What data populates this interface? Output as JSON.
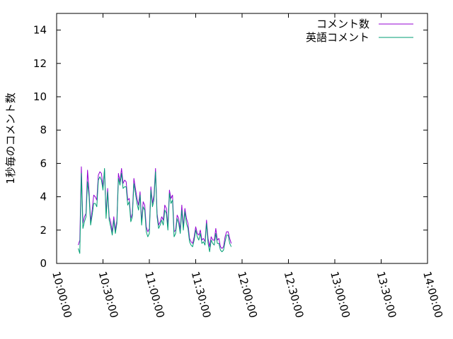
{
  "chart_data": {
    "type": "line",
    "title": "",
    "xlabel": "",
    "ylabel": "1秒毎のコメント数",
    "xlim": [
      "10:00:00",
      "14:00:00"
    ],
    "ylim": [
      0,
      15
    ],
    "grid": false,
    "legend_position": "top-right",
    "x_ticks": [
      "10:00:00",
      "10:30:00",
      "11:00:00",
      "11:30:00",
      "12:00:00",
      "12:30:00",
      "13:00:00",
      "13:30:00",
      "14:00:00"
    ],
    "y_ticks": [
      0,
      2,
      4,
      6,
      8,
      10,
      12,
      14
    ],
    "series": [
      {
        "name": "コメント数",
        "color": "#9400d3",
        "points": [
          [
            "10:14:00",
            1.1
          ],
          [
            "10:15:00",
            1.4
          ],
          [
            "10:16:00",
            5.8
          ],
          [
            "10:17:00",
            2.4
          ],
          [
            "10:18:00",
            2.8
          ],
          [
            "10:19:00",
            3.0
          ],
          [
            "10:20:00",
            5.6
          ],
          [
            "10:21:00",
            4.3
          ],
          [
            "10:22:00",
            2.5
          ],
          [
            "10:23:00",
            3.2
          ],
          [
            "10:24:00",
            4.1
          ],
          [
            "10:25:00",
            4.0
          ],
          [
            "10:26:00",
            3.8
          ],
          [
            "10:27:00",
            5.3
          ],
          [
            "10:28:00",
            5.5
          ],
          [
            "10:29:00",
            5.4
          ],
          [
            "10:30:00",
            4.6
          ],
          [
            "10:31:00",
            5.6
          ],
          [
            "10:32:00",
            3.0
          ],
          [
            "10:33:00",
            4.5
          ],
          [
            "10:34:00",
            2.8
          ],
          [
            "10:35:00",
            2.5
          ],
          [
            "10:36:00",
            1.9
          ],
          [
            "10:37:00",
            2.8
          ],
          [
            "10:38:00",
            2.0
          ],
          [
            "10:39:00",
            2.6
          ],
          [
            "10:40:00",
            5.4
          ],
          [
            "10:41:00",
            4.9
          ],
          [
            "10:42:00",
            5.7
          ],
          [
            "10:43:00",
            4.8
          ],
          [
            "10:44:00",
            5.0
          ],
          [
            "10:45:00",
            4.9
          ],
          [
            "10:46:00",
            3.8
          ],
          [
            "10:47:00",
            3.9
          ],
          [
            "10:48:00",
            2.7
          ],
          [
            "10:49:00",
            3.0
          ],
          [
            "10:50:00",
            5.1
          ],
          [
            "10:51:00",
            4.5
          ],
          [
            "10:52:00",
            3.9
          ],
          [
            "10:53:00",
            3.5
          ],
          [
            "10:54:00",
            4.3
          ],
          [
            "10:55:00",
            2.5
          ],
          [
            "10:56:00",
            3.7
          ],
          [
            "10:57:00",
            3.5
          ],
          [
            "10:58:00",
            2.2
          ],
          [
            "10:59:00",
            1.9
          ],
          [
            "11:00:00",
            2.1
          ],
          [
            "11:01:00",
            4.6
          ],
          [
            "11:02:00",
            3.6
          ],
          [
            "11:03:00",
            4.1
          ],
          [
            "11:04:00",
            5.7
          ],
          [
            "11:05:00",
            3.0
          ],
          [
            "11:06:00",
            2.3
          ],
          [
            "11:07:00",
            2.5
          ],
          [
            "11:08:00",
            2.8
          ],
          [
            "11:09:00",
            2.6
          ],
          [
            "11:10:00",
            3.5
          ],
          [
            "11:11:00",
            3.3
          ],
          [
            "11:12:00",
            2.2
          ],
          [
            "11:13:00",
            4.4
          ],
          [
            "11:14:00",
            3.9
          ],
          [
            "11:15:00",
            4.1
          ],
          [
            "11:16:00",
            1.9
          ],
          [
            "11:17:00",
            2.0
          ],
          [
            "11:18:00",
            2.9
          ],
          [
            "11:19:00",
            2.7
          ],
          [
            "11:20:00",
            2.0
          ],
          [
            "11:21:00",
            3.5
          ],
          [
            "11:22:00",
            2.2
          ],
          [
            "11:23:00",
            3.3
          ],
          [
            "11:24:00",
            2.7
          ],
          [
            "11:25:00",
            2.4
          ],
          [
            "11:26:00",
            1.5
          ],
          [
            "11:27:00",
            1.3
          ],
          [
            "11:28:00",
            1.2
          ],
          [
            "11:29:00",
            1.6
          ],
          [
            "11:30:00",
            2.2
          ],
          [
            "11:31:00",
            1.8
          ],
          [
            "11:32:00",
            1.7
          ],
          [
            "11:33:00",
            2.0
          ],
          [
            "11:34:00",
            1.4
          ],
          [
            "11:35:00",
            1.5
          ],
          [
            "11:36:00",
            1.3
          ],
          [
            "11:37:00",
            2.6
          ],
          [
            "11:38:00",
            1.5
          ],
          [
            "11:39:00",
            1.0
          ],
          [
            "11:40:00",
            1.6
          ],
          [
            "11:41:00",
            1.4
          ],
          [
            "11:42:00",
            1.4
          ],
          [
            "11:43:00",
            2.1
          ],
          [
            "11:44:00",
            1.4
          ],
          [
            "11:45:00",
            1.5
          ],
          [
            "11:46:00",
            1.0
          ],
          [
            "11:47:00",
            0.9
          ],
          [
            "11:48:00",
            1.0
          ],
          [
            "11:49:00",
            1.6
          ],
          [
            "11:50:00",
            1.9
          ],
          [
            "11:51:00",
            1.9
          ],
          [
            "11:52:00",
            1.5
          ],
          [
            "11:53:00",
            1.2
          ]
        ]
      },
      {
        "name": "英語コメント",
        "color": "#009e73",
        "points": [
          [
            "10:14:00",
            0.9
          ],
          [
            "10:15:00",
            0.6
          ],
          [
            "10:16:00",
            5.4
          ],
          [
            "10:17:00",
            2.1
          ],
          [
            "10:18:00",
            2.5
          ],
          [
            "10:19:00",
            2.8
          ],
          [
            "10:20:00",
            4.9
          ],
          [
            "10:21:00",
            4.0
          ],
          [
            "10:22:00",
            2.3
          ],
          [
            "10:23:00",
            2.9
          ],
          [
            "10:24:00",
            3.6
          ],
          [
            "10:25:00",
            3.6
          ],
          [
            "10:26:00",
            3.4
          ],
          [
            "10:27:00",
            5.0
          ],
          [
            "10:28:00",
            5.2
          ],
          [
            "10:29:00",
            5.0
          ],
          [
            "10:30:00",
            4.4
          ],
          [
            "10:31:00",
            5.7
          ],
          [
            "10:32:00",
            2.7
          ],
          [
            "10:33:00",
            4.3
          ],
          [
            "10:34:00",
            2.6
          ],
          [
            "10:35:00",
            2.2
          ],
          [
            "10:36:00",
            1.7
          ],
          [
            "10:37:00",
            2.6
          ],
          [
            "10:38:00",
            1.8
          ],
          [
            "10:39:00",
            2.4
          ],
          [
            "10:40:00",
            5.1
          ],
          [
            "10:41:00",
            4.7
          ],
          [
            "10:42:00",
            5.4
          ],
          [
            "10:43:00",
            4.5
          ],
          [
            "10:44:00",
            4.6
          ],
          [
            "10:45:00",
            4.6
          ],
          [
            "10:46:00",
            3.5
          ],
          [
            "10:47:00",
            3.7
          ],
          [
            "10:48:00",
            2.5
          ],
          [
            "10:49:00",
            2.8
          ],
          [
            "10:50:00",
            4.8
          ],
          [
            "10:51:00",
            4.2
          ],
          [
            "10:52:00",
            3.6
          ],
          [
            "10:53:00",
            3.2
          ],
          [
            "10:54:00",
            4.1
          ],
          [
            "10:55:00",
            2.3
          ],
          [
            "10:56:00",
            3.4
          ],
          [
            "10:57:00",
            3.2
          ],
          [
            "10:58:00",
            1.9
          ],
          [
            "10:59:00",
            1.6
          ],
          [
            "11:00:00",
            1.8
          ],
          [
            "11:01:00",
            4.4
          ],
          [
            "11:02:00",
            3.4
          ],
          [
            "11:03:00",
            3.8
          ],
          [
            "11:04:00",
            5.5
          ],
          [
            "11:05:00",
            2.8
          ],
          [
            "11:06:00",
            2.1
          ],
          [
            "11:07:00",
            2.3
          ],
          [
            "11:08:00",
            2.6
          ],
          [
            "11:09:00",
            2.3
          ],
          [
            "11:10:00",
            3.2
          ],
          [
            "11:11:00",
            3.0
          ],
          [
            "11:12:00",
            2.0
          ],
          [
            "11:13:00",
            4.2
          ],
          [
            "11:14:00",
            3.6
          ],
          [
            "11:15:00",
            3.8
          ],
          [
            "11:16:00",
            1.6
          ],
          [
            "11:17:00",
            1.8
          ],
          [
            "11:18:00",
            2.7
          ],
          [
            "11:19:00",
            2.4
          ],
          [
            "11:20:00",
            1.8
          ],
          [
            "11:21:00",
            3.2
          ],
          [
            "11:22:00",
            2.0
          ],
          [
            "11:23:00",
            3.1
          ],
          [
            "11:24:00",
            2.4
          ],
          [
            "11:25:00",
            2.1
          ],
          [
            "11:26:00",
            1.3
          ],
          [
            "11:27:00",
            1.1
          ],
          [
            "11:28:00",
            1.0
          ],
          [
            "11:29:00",
            1.4
          ],
          [
            "11:30:00",
            2.0
          ],
          [
            "11:31:00",
            1.6
          ],
          [
            "11:32:00",
            1.4
          ],
          [
            "11:33:00",
            1.8
          ],
          [
            "11:34:00",
            1.2
          ],
          [
            "11:35:00",
            1.3
          ],
          [
            "11:36:00",
            1.1
          ],
          [
            "11:37:00",
            2.4
          ],
          [
            "11:38:00",
            1.2
          ],
          [
            "11:39:00",
            0.7
          ],
          [
            "11:40:00",
            1.4
          ],
          [
            "11:41:00",
            1.2
          ],
          [
            "11:42:00",
            1.1
          ],
          [
            "11:43:00",
            1.8
          ],
          [
            "11:44:00",
            1.2
          ],
          [
            "11:45:00",
            1.2
          ],
          [
            "11:46:00",
            0.8
          ],
          [
            "11:47:00",
            0.7
          ],
          [
            "11:48:00",
            0.8
          ],
          [
            "11:49:00",
            1.3
          ],
          [
            "11:50:00",
            1.7
          ],
          [
            "11:51:00",
            1.7
          ],
          [
            "11:52:00",
            1.2
          ],
          [
            "11:53:00",
            1.0
          ]
        ]
      }
    ]
  }
}
